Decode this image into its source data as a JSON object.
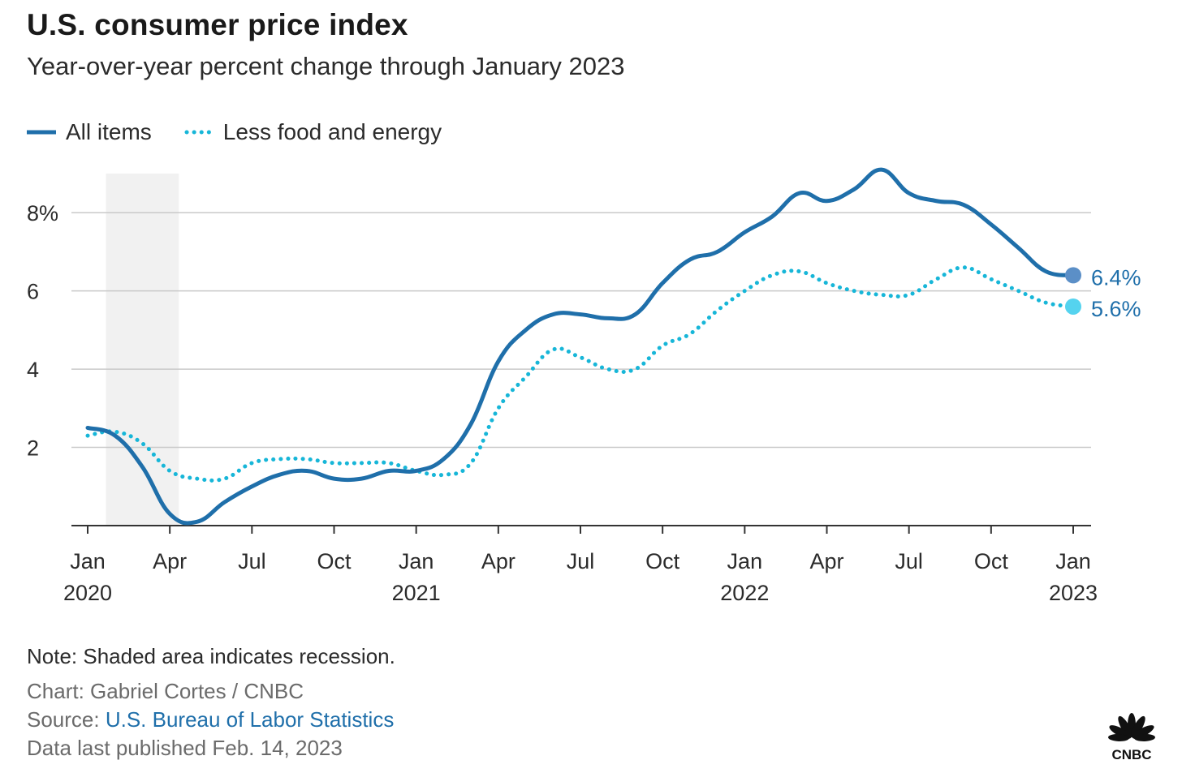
{
  "header": {
    "title": "U.S. consumer price index",
    "subtitle": "Year-over-year percent change through January 2023"
  },
  "chart_data": {
    "type": "line",
    "x_unit": "month",
    "xlim": [
      "2020-01",
      "2023-01"
    ],
    "ylim": [
      0,
      9
    ],
    "y_ticks": [
      {
        "value": 2,
        "label": "2"
      },
      {
        "value": 4,
        "label": "4"
      },
      {
        "value": 6,
        "label": "6"
      },
      {
        "value": 8,
        "label": "8%"
      }
    ],
    "x_ticks": [
      {
        "date": "2020-01",
        "month": "Jan",
        "year": "2020"
      },
      {
        "date": "2020-04",
        "month": "Apr",
        "year": ""
      },
      {
        "date": "2020-07",
        "month": "Jul",
        "year": ""
      },
      {
        "date": "2020-10",
        "month": "Oct",
        "year": ""
      },
      {
        "date": "2021-01",
        "month": "Jan",
        "year": "2021"
      },
      {
        "date": "2021-04",
        "month": "Apr",
        "year": ""
      },
      {
        "date": "2021-07",
        "month": "Jul",
        "year": ""
      },
      {
        "date": "2021-10",
        "month": "Oct",
        "year": ""
      },
      {
        "date": "2022-01",
        "month": "Jan",
        "year": "2022"
      },
      {
        "date": "2022-04",
        "month": "Apr",
        "year": ""
      },
      {
        "date": "2022-07",
        "month": "Jul",
        "year": ""
      },
      {
        "date": "2022-10",
        "month": "Oct",
        "year": ""
      },
      {
        "date": "2023-01",
        "month": "Jan",
        "year": "2023"
      }
    ],
    "grid": true,
    "legend_position": "top-left",
    "recession_shading": {
      "start": "2020-02",
      "end": "2020-04"
    },
    "x": [
      "2020-01",
      "2020-02",
      "2020-03",
      "2020-04",
      "2020-05",
      "2020-06",
      "2020-07",
      "2020-08",
      "2020-09",
      "2020-10",
      "2020-11",
      "2020-12",
      "2021-01",
      "2021-02",
      "2021-03",
      "2021-04",
      "2021-05",
      "2021-06",
      "2021-07",
      "2021-08",
      "2021-09",
      "2021-10",
      "2021-11",
      "2021-12",
      "2022-01",
      "2022-02",
      "2022-03",
      "2022-04",
      "2022-05",
      "2022-06",
      "2022-07",
      "2022-08",
      "2022-09",
      "2022-10",
      "2022-11",
      "2022-12",
      "2023-01"
    ],
    "series": [
      {
        "name": "All items",
        "color": "#1f6faa",
        "style": "solid",
        "values": [
          2.5,
          2.3,
          1.5,
          0.3,
          0.1,
          0.6,
          1.0,
          1.3,
          1.4,
          1.2,
          1.2,
          1.4,
          1.4,
          1.7,
          2.6,
          4.2,
          5.0,
          5.4,
          5.4,
          5.3,
          5.4,
          6.2,
          6.8,
          7.0,
          7.5,
          7.9,
          8.5,
          8.3,
          8.6,
          9.1,
          8.5,
          8.3,
          8.2,
          7.7,
          7.1,
          6.5,
          6.4
        ],
        "end_label": "6.4%"
      },
      {
        "name": "Less food and energy",
        "color": "#17b6d8",
        "style": "dotted",
        "values": [
          2.3,
          2.4,
          2.1,
          1.4,
          1.2,
          1.2,
          1.6,
          1.7,
          1.7,
          1.6,
          1.6,
          1.6,
          1.4,
          1.3,
          1.6,
          3.0,
          3.8,
          4.5,
          4.3,
          4.0,
          4.0,
          4.6,
          4.9,
          5.5,
          6.0,
          6.4,
          6.5,
          6.2,
          6.0,
          5.9,
          5.9,
          6.3,
          6.6,
          6.3,
          6.0,
          5.7,
          5.6
        ],
        "end_label": "5.6%"
      }
    ]
  },
  "footer": {
    "note": "Note: Shaded area indicates recession.",
    "credit": "Chart: Gabriel Cortes / CNBC",
    "source_prefix": "Source: ",
    "source_link": "U.S. Bureau of Labor Statistics",
    "published": "Data last published Feb. 14, 2023"
  },
  "logo": {
    "icon": "cnbc-peacock-icon",
    "text": "CNBC"
  }
}
